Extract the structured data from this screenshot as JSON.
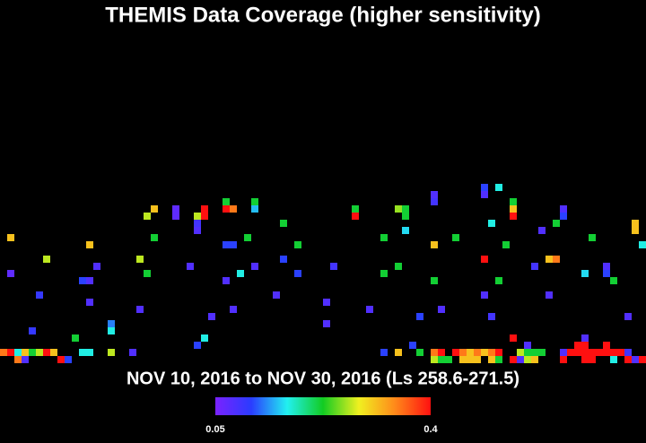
{
  "chart_data": {
    "type": "heatmap",
    "title": "THEMIS Data Coverage (higher sensitivity)",
    "subtitle": "NOV 10, 2016 to NOV 30, 2016 (Ls 258.6-271.5)",
    "xlim": [
      0,
      90
    ],
    "ylim": [
      25,
      51
    ],
    "zlim": [
      0.05,
      0.4
    ],
    "colorbar_ticks": [
      0.05,
      0.4
    ],
    "colormap": [
      "#7a22ff",
      "#2a3cff",
      "#22f0f0",
      "#12cc22",
      "#f0f020",
      "#ff8a1a",
      "#ff1010"
    ],
    "cells": [
      [
        1,
        33,
        0.31
      ],
      [
        6,
        36,
        0.27
      ],
      [
        1,
        38,
        0.07
      ],
      [
        5,
        41,
        0.1
      ],
      [
        4,
        46,
        0.1
      ],
      [
        10,
        47,
        0.22
      ],
      [
        12,
        34,
        0.31
      ],
      [
        13,
        37,
        0.08
      ],
      [
        11,
        39,
        0.11
      ],
      [
        12,
        39,
        0.08
      ],
      [
        12,
        42,
        0.08
      ],
      [
        15,
        45,
        0.13
      ],
      [
        15,
        46,
        0.17
      ],
      [
        18,
        49,
        0.08
      ],
      [
        20,
        30,
        0.27
      ],
      [
        21,
        29,
        0.31
      ],
      [
        21,
        33,
        0.22
      ],
      [
        19,
        36,
        0.27
      ],
      [
        20,
        38,
        0.22
      ],
      [
        19,
        43,
        0.08
      ],
      [
        24,
        29,
        0.07
      ],
      [
        24,
        30,
        0.07
      ],
      [
        26,
        37,
        0.08
      ],
      [
        27,
        30,
        0.27
      ],
      [
        27,
        31,
        0.09
      ],
      [
        27,
        32,
        0.08
      ],
      [
        28,
        29,
        0.4
      ],
      [
        28,
        30,
        0.4
      ],
      [
        31,
        28,
        0.22
      ],
      [
        31,
        29,
        0.4
      ],
      [
        32,
        29,
        0.35
      ],
      [
        35,
        28,
        0.22
      ],
      [
        35,
        29,
        0.15
      ],
      [
        31,
        34,
        0.11
      ],
      [
        32,
        34,
        0.11
      ],
      [
        34,
        33,
        0.22
      ],
      [
        31,
        39,
        0.08
      ],
      [
        33,
        38,
        0.17
      ],
      [
        35,
        37,
        0.08
      ],
      [
        29,
        44,
        0.08
      ],
      [
        32,
        43,
        0.08
      ],
      [
        28,
        47,
        0.17
      ],
      [
        27,
        48,
        0.11
      ],
      [
        38,
        41,
        0.08
      ],
      [
        39,
        31,
        0.22
      ],
      [
        39,
        36,
        0.11
      ],
      [
        41,
        34,
        0.22
      ],
      [
        41,
        38,
        0.11
      ],
      [
        45,
        42,
        0.08
      ],
      [
        45,
        45,
        0.08
      ],
      [
        46,
        37,
        0.09
      ],
      [
        49,
        29,
        0.22
      ],
      [
        49,
        30,
        0.4
      ],
      [
        51,
        43,
        0.08
      ],
      [
        53,
        33,
        0.22
      ],
      [
        53,
        38,
        0.22
      ],
      [
        55,
        29,
        0.26
      ],
      [
        56,
        29,
        0.22
      ],
      [
        56,
        30,
        0.22
      ],
      [
        56,
        32,
        0.16
      ],
      [
        55,
        37,
        0.22
      ],
      [
        58,
        44,
        0.11
      ],
      [
        60,
        27,
        0.08
      ],
      [
        60,
        28,
        0.09
      ],
      [
        60,
        34,
        0.31
      ],
      [
        60,
        39,
        0.22
      ],
      [
        63,
        33,
        0.22
      ],
      [
        61,
        43,
        0.08
      ],
      [
        67,
        26,
        0.11
      ],
      [
        67,
        27,
        0.08
      ],
      [
        69,
        26,
        0.17
      ],
      [
        71,
        28,
        0.22
      ],
      [
        71,
        29,
        0.31
      ],
      [
        71,
        30,
        0.4
      ],
      [
        68,
        31,
        0.17
      ],
      [
        67,
        36,
        0.4
      ],
      [
        69,
        39,
        0.22
      ],
      [
        67,
        41,
        0.08
      ],
      [
        68,
        44,
        0.09
      ],
      [
        70,
        34,
        0.22
      ],
      [
        75,
        32,
        0.08
      ],
      [
        74,
        37,
        0.09
      ],
      [
        76,
        36,
        0.31
      ],
      [
        77,
        31,
        0.22
      ],
      [
        78,
        29,
        0.08
      ],
      [
        78,
        30,
        0.11
      ],
      [
        76,
        41,
        0.08
      ],
      [
        77,
        36,
        0.35
      ],
      [
        81,
        38,
        0.16
      ],
      [
        82,
        33,
        0.22
      ],
      [
        84,
        37,
        0.08
      ],
      [
        84,
        38,
        0.11
      ],
      [
        85,
        39,
        0.22
      ],
      [
        87,
        44,
        0.08
      ],
      [
        88,
        31,
        0.31
      ],
      [
        88,
        32,
        0.31
      ],
      [
        89,
        34,
        0.17
      ],
      [
        71,
        47,
        0.4
      ],
      [
        57,
        48,
        0.11
      ],
      [
        73,
        48,
        0.08
      ],
      [
        81,
        47,
        0.08
      ],
      [
        80,
        48,
        0.4
      ],
      [
        81,
        48,
        0.4
      ],
      [
        84,
        48,
        0.4
      ],
      [
        0,
        49,
        0.35
      ],
      [
        1,
        49,
        0.4
      ],
      [
        2,
        49,
        0.17
      ],
      [
        3,
        49,
        0.31
      ],
      [
        4,
        49,
        0.22
      ],
      [
        5,
        49,
        0.27
      ],
      [
        6,
        49,
        0.4
      ],
      [
        7,
        49,
        0.31
      ],
      [
        11,
        49,
        0.17
      ],
      [
        12,
        49,
        0.17
      ],
      [
        15,
        49,
        0.27
      ],
      [
        53,
        49,
        0.11
      ],
      [
        55,
        49,
        0.31
      ],
      [
        58,
        49,
        0.22
      ],
      [
        60,
        49,
        0.35
      ],
      [
        61,
        49,
        0.4
      ],
      [
        63,
        49,
        0.4
      ],
      [
        64,
        49,
        0.35
      ],
      [
        65,
        49,
        0.31
      ],
      [
        66,
        49,
        0.35
      ],
      [
        67,
        49,
        0.31
      ],
      [
        68,
        49,
        0.35
      ],
      [
        69,
        49,
        0.4
      ],
      [
        72,
        49,
        0.27
      ],
      [
        73,
        49,
        0.22
      ],
      [
        74,
        49,
        0.22
      ],
      [
        75,
        49,
        0.22
      ],
      [
        78,
        49,
        0.08
      ],
      [
        79,
        49,
        0.4
      ],
      [
        80,
        49,
        0.4
      ],
      [
        81,
        49,
        0.4
      ],
      [
        82,
        49,
        0.4
      ],
      [
        83,
        49,
        0.4
      ],
      [
        84,
        49,
        0.4
      ],
      [
        85,
        49,
        0.4
      ],
      [
        86,
        49,
        0.4
      ],
      [
        87,
        49,
        0.09
      ],
      [
        2,
        50,
        0.35
      ],
      [
        3,
        50,
        0.08
      ],
      [
        8,
        50,
        0.4
      ],
      [
        9,
        50,
        0.11
      ],
      [
        60,
        50,
        0.27
      ],
      [
        61,
        50,
        0.22
      ],
      [
        62,
        50,
        0.22
      ],
      [
        64,
        50,
        0.31
      ],
      [
        65,
        50,
        0.31
      ],
      [
        66,
        50,
        0.31
      ],
      [
        68,
        50,
        0.31
      ],
      [
        69,
        50,
        0.22
      ],
      [
        71,
        50,
        0.4
      ],
      [
        72,
        50,
        0.08
      ],
      [
        73,
        50,
        0.27
      ],
      [
        74,
        50,
        0.31
      ],
      [
        78,
        50,
        0.4
      ],
      [
        81,
        50,
        0.4
      ],
      [
        82,
        50,
        0.4
      ],
      [
        85,
        50,
        0.17
      ],
      [
        87,
        50,
        0.4
      ],
      [
        88,
        50,
        0.08
      ],
      [
        89,
        50,
        0.4
      ]
    ]
  }
}
